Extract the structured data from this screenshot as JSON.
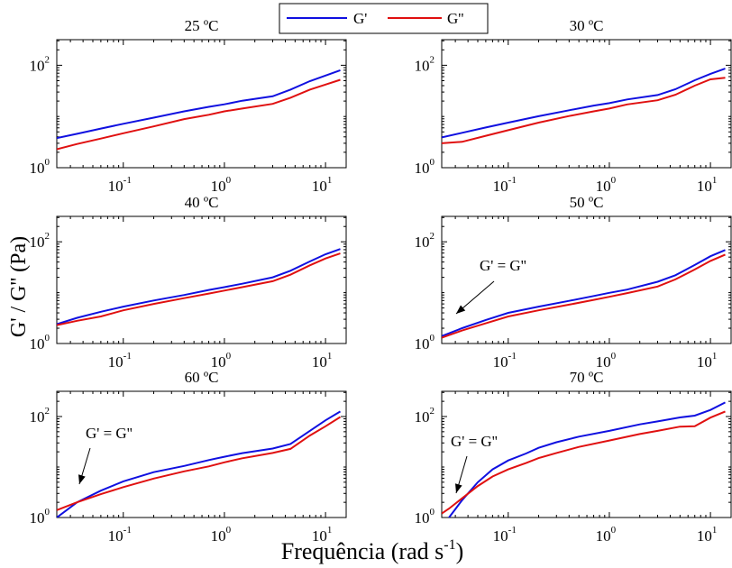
{
  "figure": {
    "ylabel": "G' / G'' (Pa)",
    "xlabel_base": "Frequência (rad s",
    "xlabel_sup": "-1",
    "xlabel_end": ")"
  },
  "legend": {
    "entries": [
      {
        "label": "G'",
        "color": "#1010e0"
      },
      {
        "label": "G''",
        "color": "#e01010"
      }
    ]
  },
  "colors": {
    "g_prime": "#1010e0",
    "g_double_prime": "#e01010",
    "axes": "#000000"
  },
  "chart_data": [
    {
      "type": "line",
      "title": "25 ºC",
      "x_scale": "log",
      "y_scale": "log",
      "xlim": [
        0.022,
        16
      ],
      "ylim": [
        1,
        316
      ],
      "xticks": [
        {
          "base": "10",
          "exp": "-1",
          "value": 0.1
        },
        {
          "base": "10",
          "exp": "0",
          "value": 1
        },
        {
          "base": "10",
          "exp": "1",
          "value": 10
        }
      ],
      "yticks": [
        {
          "base": "10",
          "exp": "0",
          "value": 1
        },
        {
          "base": "10",
          "exp": "2",
          "value": 100
        }
      ],
      "x": [
        0.022,
        0.035,
        0.06,
        0.1,
        0.2,
        0.4,
        0.7,
        1.0,
        1.5,
        3.0,
        4.5,
        7.0,
        10,
        14
      ],
      "series": [
        {
          "name": "G'",
          "color": "#1010e0",
          "values": [
            3.8,
            4.6,
            5.8,
            7.2,
            9.5,
            12.6,
            15.4,
            17.3,
            20.3,
            24.8,
            33.5,
            49,
            63,
            80
          ]
        },
        {
          "name": "G''",
          "color": "#e01010",
          "values": [
            2.3,
            2.9,
            3.7,
            4.7,
            6.4,
            8.9,
            10.8,
            12.6,
            14.3,
            17.6,
            23.2,
            33.5,
            42,
            52
          ]
        }
      ]
    },
    {
      "type": "line",
      "title": "30 ºC",
      "x_scale": "log",
      "y_scale": "log",
      "xlim": [
        0.022,
        16
      ],
      "ylim": [
        1,
        316
      ],
      "xticks": [
        {
          "base": "10",
          "exp": "-1",
          "value": 0.1
        },
        {
          "base": "10",
          "exp": "0",
          "value": 1
        },
        {
          "base": "10",
          "exp": "1",
          "value": 10
        }
      ],
      "yticks": [
        {
          "base": "10",
          "exp": "0",
          "value": 1
        },
        {
          "base": "10",
          "exp": "2",
          "value": 100
        }
      ],
      "x": [
        0.022,
        0.035,
        0.06,
        0.1,
        0.2,
        0.4,
        0.7,
        1.0,
        1.5,
        3.0,
        4.5,
        7.0,
        10,
        14
      ],
      "series": [
        {
          "name": "G'",
          "color": "#1010e0",
          "values": [
            3.9,
            4.8,
            6.1,
            7.6,
            10.1,
            13.2,
            16.3,
            18.2,
            21.5,
            26.2,
            34,
            51,
            68,
            86
          ]
        },
        {
          "name": "G''",
          "color": "#e01010",
          "values": [
            3.0,
            3.2,
            4.2,
            5.4,
            7.6,
            10.2,
            12.6,
            14.3,
            17.2,
            20.7,
            26.5,
            40,
            53,
            57
          ]
        }
      ]
    },
    {
      "type": "line",
      "title": "40 ºC",
      "x_scale": "log",
      "y_scale": "log",
      "xlim": [
        0.022,
        16
      ],
      "ylim": [
        1,
        316
      ],
      "xticks": [
        {
          "base": "10",
          "exp": "-1",
          "value": 0.1
        },
        {
          "base": "10",
          "exp": "0",
          "value": 1
        },
        {
          "base": "10",
          "exp": "1",
          "value": 10
        }
      ],
      "yticks": [
        {
          "base": "10",
          "exp": "0",
          "value": 1
        },
        {
          "base": "10",
          "exp": "2",
          "value": 100
        }
      ],
      "x": [
        0.022,
        0.035,
        0.06,
        0.1,
        0.2,
        0.4,
        0.7,
        1.0,
        1.5,
        3.0,
        4.5,
        7.0,
        10,
        14
      ],
      "series": [
        {
          "name": "G'",
          "color": "#1010e0",
          "values": [
            2.4,
            3.2,
            4.2,
            5.3,
            7.0,
            9.0,
            11.3,
            12.8,
            15.0,
            20.0,
            27,
            41,
            57,
            72
          ]
        },
        {
          "name": "G''",
          "color": "#e01010",
          "values": [
            2.3,
            2.8,
            3.4,
            4.5,
            6.0,
            7.8,
            9.6,
            11.0,
            12.8,
            16.8,
            22.5,
            34.5,
            47,
            59
          ]
        }
      ]
    },
    {
      "type": "line",
      "title": "50 ºC",
      "x_scale": "log",
      "y_scale": "log",
      "xlim": [
        0.022,
        16
      ],
      "ylim": [
        1,
        316
      ],
      "xticks": [
        {
          "base": "10",
          "exp": "-1",
          "value": 0.1
        },
        {
          "base": "10",
          "exp": "0",
          "value": 1
        },
        {
          "base": "10",
          "exp": "1",
          "value": 10
        }
      ],
      "yticks": [
        {
          "base": "10",
          "exp": "0",
          "value": 1
        },
        {
          "base": "10",
          "exp": "2",
          "value": 100
        }
      ],
      "x": [
        0.022,
        0.035,
        0.06,
        0.1,
        0.2,
        0.4,
        0.7,
        1.0,
        1.5,
        3.0,
        4.5,
        7.0,
        10,
        14
      ],
      "series": [
        {
          "name": "G'",
          "color": "#1010e0",
          "values": [
            1.4,
            2.0,
            2.9,
            4.0,
            5.3,
            6.9,
            8.6,
            9.9,
            11.5,
            16.4,
            22,
            35,
            52,
            69
          ]
        },
        {
          "name": "G''",
          "color": "#e01010",
          "values": [
            1.3,
            1.8,
            2.5,
            3.4,
            4.5,
            5.8,
            7.2,
            8.3,
            9.8,
            13.2,
            18.2,
            28.5,
            42,
            56
          ]
        }
      ],
      "annotations": [
        {
          "text": "G' = G''",
          "x": 0.024,
          "y": 1.5
        }
      ]
    },
    {
      "type": "line",
      "title": "60 ºC",
      "x_scale": "log",
      "y_scale": "log",
      "xlim": [
        0.022,
        16
      ],
      "ylim": [
        1,
        316
      ],
      "xticks": [
        {
          "base": "10",
          "exp": "-1",
          "value": 0.1
        },
        {
          "base": "10",
          "exp": "0",
          "value": 1
        },
        {
          "base": "10",
          "exp": "1",
          "value": 10
        }
      ],
      "yticks": [
        {
          "base": "10",
          "exp": "0",
          "value": 1
        },
        {
          "base": "10",
          "exp": "2",
          "value": 100
        }
      ],
      "x": [
        0.022,
        0.035,
        0.06,
        0.1,
        0.2,
        0.4,
        0.7,
        1.0,
        1.5,
        3.0,
        4.5,
        7.0,
        10,
        14
      ],
      "series": [
        {
          "name": "G'",
          "color": "#1010e0",
          "values": [
            1.0,
            2.0,
            3.4,
            5.2,
            7.9,
            10.5,
            13.7,
            16.0,
            18.8,
            23.2,
            28.5,
            52,
            84,
            126
          ]
        },
        {
          "name": "G''",
          "color": "#e01010",
          "values": [
            1.4,
            2.0,
            2.9,
            4.0,
            5.9,
            8.2,
            10.3,
            12.4,
            14.9,
            19.0,
            22.8,
            42,
            64,
            98
          ]
        }
      ],
      "annotations": [
        {
          "text": "G' = G''",
          "x": 0.034,
          "y": 2.0
        }
      ]
    },
    {
      "type": "line",
      "title": "70 ºC",
      "x_scale": "log",
      "y_scale": "log",
      "xlim": [
        0.022,
        16
      ],
      "ylim": [
        1,
        316
      ],
      "xticks": [
        {
          "base": "10",
          "exp": "-1",
          "value": 0.1
        },
        {
          "base": "10",
          "exp": "0",
          "value": 1
        },
        {
          "base": "10",
          "exp": "1",
          "value": 10
        }
      ],
      "yticks": [
        {
          "base": "10",
          "exp": "0",
          "value": 1
        },
        {
          "base": "10",
          "exp": "2",
          "value": 100
        }
      ],
      "x": [
        0.022,
        0.026,
        0.035,
        0.05,
        0.07,
        0.1,
        0.15,
        0.2,
        0.3,
        0.5,
        1.0,
        2.0,
        3.0,
        5.0,
        7.0,
        10,
        14
      ],
      "series": [
        {
          "name": "G'",
          "color": "#1010e0",
          "values": [
            0.6,
            1.0,
            2.2,
            5.0,
            9.0,
            13.5,
            18.5,
            24.0,
            31,
            40,
            52,
            70,
            80,
            96,
            104,
            135,
            190
          ]
        },
        {
          "name": "G''",
          "color": "#e01010",
          "values": [
            1.2,
            1.5,
            2.4,
            4.2,
            6.5,
            9.0,
            12.0,
            15.0,
            19,
            25,
            33.5,
            45,
            52,
            63,
            64,
            95,
            126
          ]
        }
      ],
      "annotations": [
        {
          "text": "G' = G''",
          "x": 0.034,
          "y": 2.2
        }
      ]
    }
  ]
}
